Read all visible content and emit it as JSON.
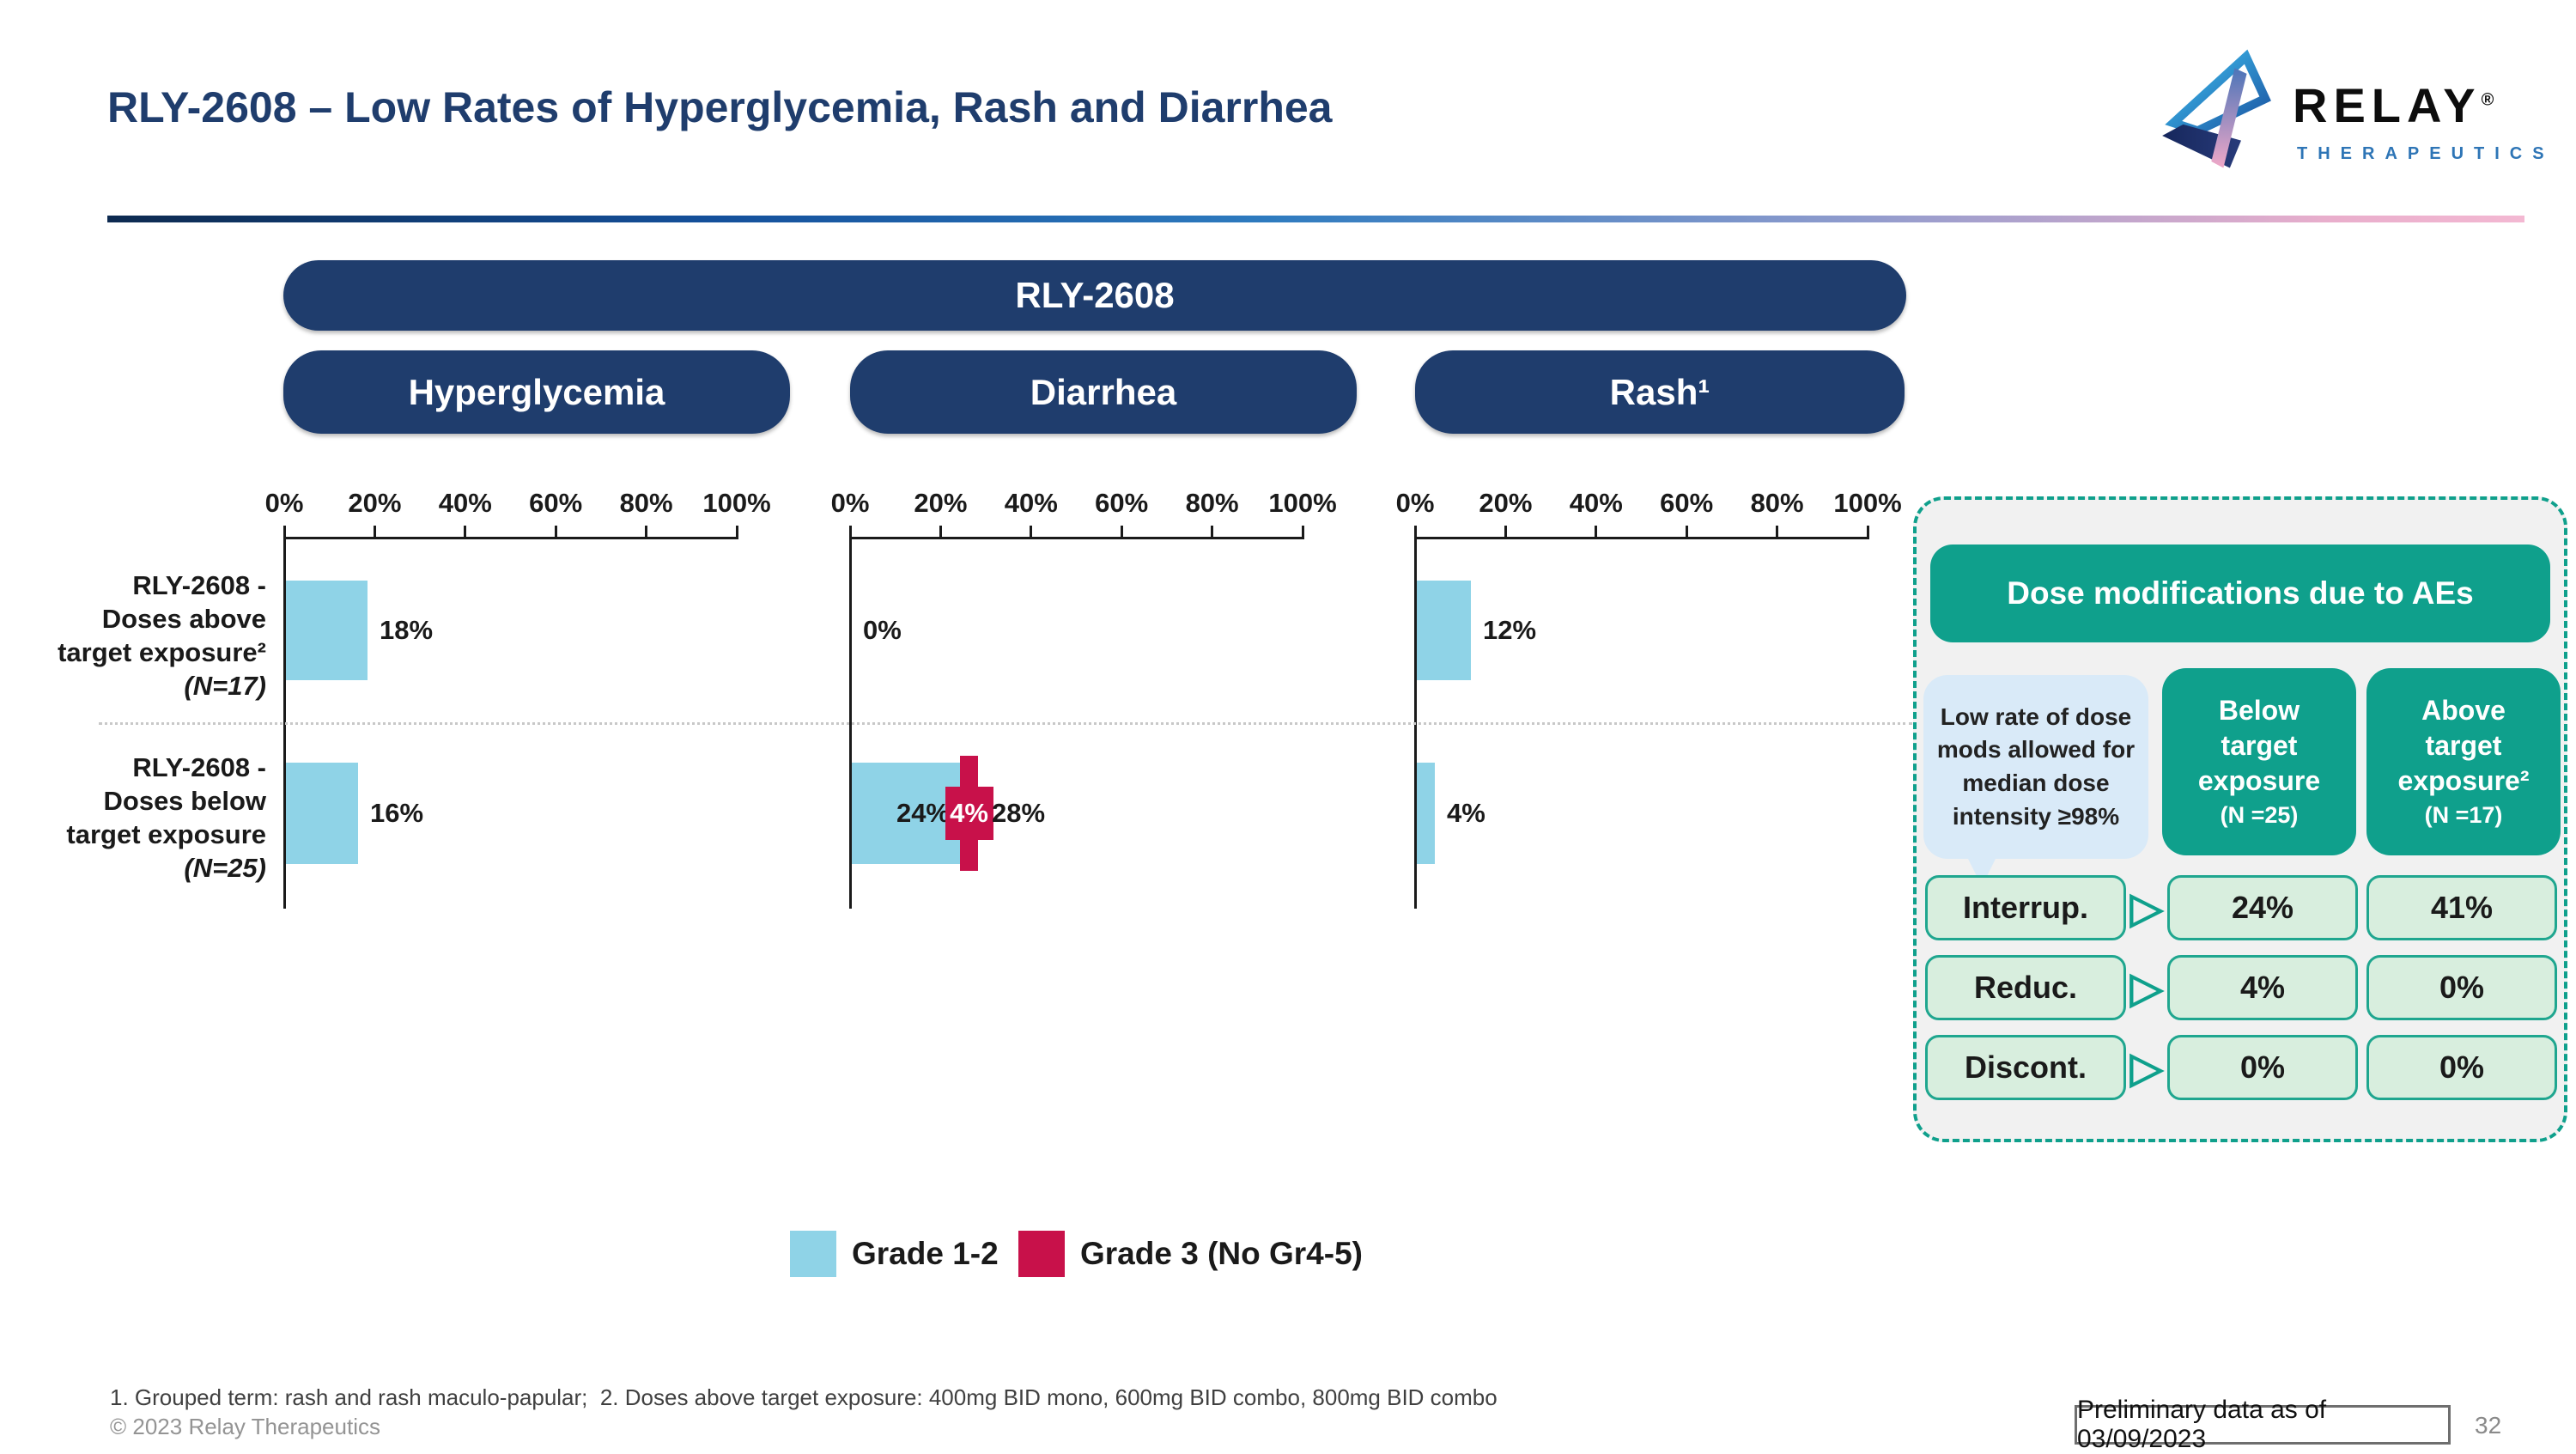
{
  "slide": {
    "title": "RLY-2608 – Low Rates of Hyperglycemia, Rash and Diarrhea",
    "footnote": "1. Grouped term: rash and rash maculo-papular;  2. Doses above target exposure: 400mg BID mono, 600mg BID combo, 800mg BID combo",
    "copyright": "© 2023 Relay Therapeutics",
    "preliminary": "Preliminary data as of 03/09/2023",
    "page_number": "32"
  },
  "logo": {
    "wordmark": "RELAY",
    "registered": "®",
    "subtext": "THERAPEUTICS"
  },
  "banner": {
    "label": "RLY-2608"
  },
  "legend": [
    {
      "label": "Grade 1-2",
      "color": "#8FD3E7"
    },
    {
      "label": "Grade 3 (No Gr4-5)",
      "color": "#C8114A"
    }
  ],
  "chart_data": {
    "type": "bar",
    "orientation": "horizontal",
    "unit": "percent",
    "x_axis": {
      "ticks": [
        "0%",
        "20%",
        "40%",
        "60%",
        "80%",
        "100%"
      ],
      "range": [
        0,
        100
      ],
      "grid": false
    },
    "series_names": [
      "Grade 1-2",
      "Grade 3 (No Gr4-5)"
    ],
    "row_labels": [
      {
        "lines": "RLY-2608 -\nDoses above\ntarget exposure²",
        "n": "(N=17)"
      },
      {
        "lines": "RLY-2608 -\nDoses below\ntarget exposure",
        "n": "(N=25)"
      }
    ],
    "charts": [
      {
        "title": "Hyperglycemia",
        "bars": [
          {
            "row": "Doses above target exposure (N=17)",
            "grade_1_2": 18,
            "grade_3": 0,
            "labels": [
              "18%"
            ]
          },
          {
            "row": "Doses below target exposure (N=25)",
            "grade_1_2": 16,
            "grade_3": 0,
            "labels": [
              "16%"
            ]
          }
        ]
      },
      {
        "title": "Diarrhea",
        "bars": [
          {
            "row": "Doses above target exposure (N=17)",
            "grade_1_2": 0,
            "grade_3": 0,
            "labels": [
              "0%"
            ]
          },
          {
            "row": "Doses below target exposure (N=25)",
            "grade_1_2": 24,
            "grade_3": 4,
            "labels": [
              "24%",
              "4%",
              "28%"
            ]
          }
        ]
      },
      {
        "title": "Rash¹",
        "bars": [
          {
            "row": "Doses above target exposure (N=17)",
            "grade_1_2": 12,
            "grade_3": 0,
            "labels": [
              "12%"
            ]
          },
          {
            "row": "Doses below target exposure (N=25)",
            "grade_1_2": 4,
            "grade_3": 0,
            "labels": [
              "4%"
            ]
          }
        ]
      }
    ]
  },
  "dose_panel": {
    "title": "Dose modifications due to AEs",
    "callout": "Low rate of dose mods allowed for median dose intensity ≥98%",
    "columns": [
      {
        "lines": "Below\ntarget\nexposure",
        "n": "(N =25)"
      },
      {
        "lines": "Above\ntarget\nexposure²",
        "n": "(N =17)"
      }
    ],
    "arrow_glyph": "▷",
    "rows": [
      {
        "label": "Interrup.",
        "below": "24%",
        "above": "41%"
      },
      {
        "label": "Reduc.",
        "below": "4%",
        "above": "0%"
      },
      {
        "label": "Discont.",
        "below": "0%",
        "above": "0%"
      }
    ],
    "colors": {
      "teal": "#0FA08C",
      "cell_bg": "#D8EEDE",
      "cell_border": "#1FA68F",
      "callout_bg": "#D9EAF8",
      "panel_bg": "#F1F1F1"
    }
  }
}
